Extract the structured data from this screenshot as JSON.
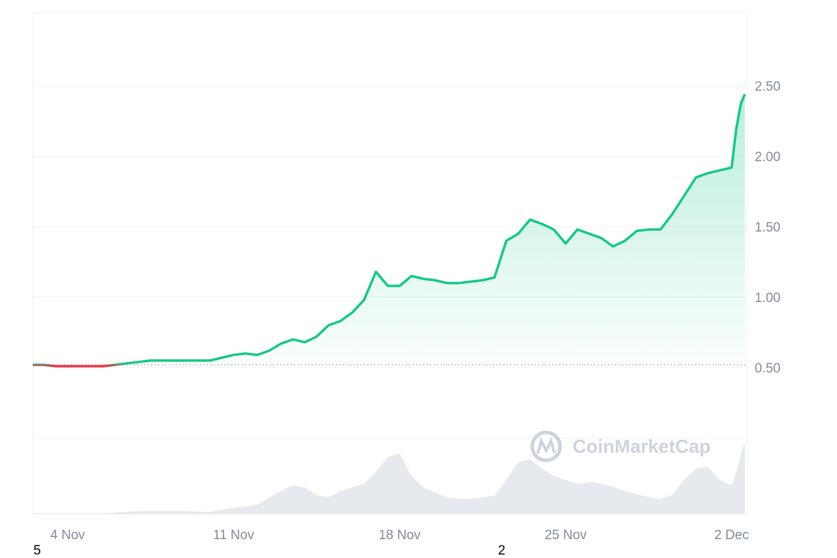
{
  "chart_data": {
    "type": "line",
    "x": [
      2.53,
      3,
      3.5,
      4,
      4.5,
      5,
      5.5,
      6,
      6.5,
      7,
      7.5,
      8,
      8.5,
      9,
      9.5,
      10,
      10.5,
      11,
      11.5,
      12,
      12.5,
      13,
      13.5,
      14,
      14.5,
      15,
      15.5,
      16,
      16.5,
      17,
      17.5,
      18,
      18.5,
      19,
      19.5,
      20,
      20.5,
      21,
      21.5,
      22,
      22.5,
      23,
      23.5,
      24,
      24.5,
      25,
      25.5,
      26,
      26.5,
      27,
      27.5,
      28,
      28.5,
      29,
      29.5,
      30,
      30.5,
      31,
      31.5,
      32,
      32.2,
      32.4,
      32.56
    ],
    "series": [
      {
        "color": "#16c784",
        "values": [
          0.52,
          0.52,
          0.51,
          0.51,
          0.51,
          0.51,
          0.51,
          0.52,
          0.53,
          0.54,
          0.55,
          0.55,
          0.55,
          0.55,
          0.55,
          0.55,
          0.57,
          0.59,
          0.6,
          0.59,
          0.62,
          0.67,
          0.7,
          0.68,
          0.72,
          0.8,
          0.83,
          0.89,
          0.98,
          1.18,
          1.08,
          1.08,
          1.15,
          1.13,
          1.12,
          1.1,
          1.1,
          1.11,
          1.12,
          1.14,
          1.4,
          1.45,
          1.55,
          1.52,
          1.48,
          1.38,
          1.48,
          1.45,
          1.42,
          1.36,
          1.4,
          1.47,
          1.48,
          1.48,
          1.59,
          1.72,
          1.85,
          1.88,
          1.9,
          1.92,
          2.2,
          2.38,
          2.44
        ]
      }
    ],
    "volume": {
      "color": "#e6e9ee",
      "values": [
        1,
        1,
        1,
        1,
        1,
        1,
        1,
        2,
        3,
        4,
        4,
        4,
        4,
        4,
        3,
        3,
        6,
        8,
        10,
        12,
        22,
        30,
        38,
        35,
        25,
        22,
        30,
        35,
        40,
        55,
        75,
        80,
        50,
        35,
        28,
        22,
        20,
        20,
        22,
        24,
        45,
        68,
        72,
        60,
        50,
        45,
        40,
        42,
        40,
        36,
        30,
        26,
        22,
        20,
        25,
        45,
        60,
        62,
        45,
        38,
        55,
        80,
        95
      ],
      "lim": [
        0,
        100
      ]
    },
    "baseline": 0.52,
    "down_color": "#ea3943",
    "xlim": [
      2.53,
      32.65
    ],
    "xticks": [
      {
        "value": 4,
        "label": "4 Nov"
      },
      {
        "value": 11,
        "label": "11 Nov"
      },
      {
        "value": 18,
        "label": "18 Nov"
      },
      {
        "value": 25,
        "label": "25 Nov"
      },
      {
        "value": 32,
        "label": "2 Dec"
      }
    ],
    "ylim": [
      0,
      3.02
    ],
    "yticks": [
      {
        "value": 0.5,
        "label": "0.50"
      },
      {
        "value": 1,
        "label": "1.00"
      },
      {
        "value": 1.5,
        "label": "1.50"
      },
      {
        "value": 2,
        "label": "2.00"
      },
      {
        "value": 2.5,
        "label": "2.50"
      }
    ],
    "grid": true,
    "watermark": "CoinMarketCap",
    "footer_marks": [
      "5",
      "2"
    ]
  }
}
